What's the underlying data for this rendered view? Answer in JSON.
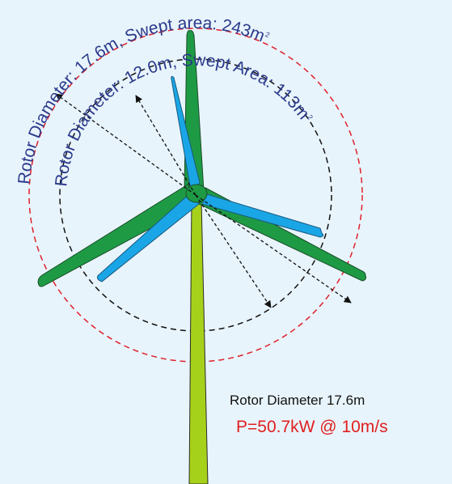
{
  "large_rotor": {
    "label": "Rotor Diameter: 17.6m, Swept area: 243m",
    "superscript": "2",
    "circle_color": "#e0202a"
  },
  "small_rotor": {
    "label": "Rotor Diameter: 12.0m, Swept Area: 113m",
    "superscript": "2",
    "circle_color": "#111111"
  },
  "blades": {
    "large_color": "#1e9a44",
    "small_color": "#1aa6e6"
  },
  "tower": {
    "color": "#a6d11a"
  },
  "specs": {
    "diameter": "Rotor Diameter 17.6m",
    "power": "P=50.7kW @ 10m/s"
  }
}
